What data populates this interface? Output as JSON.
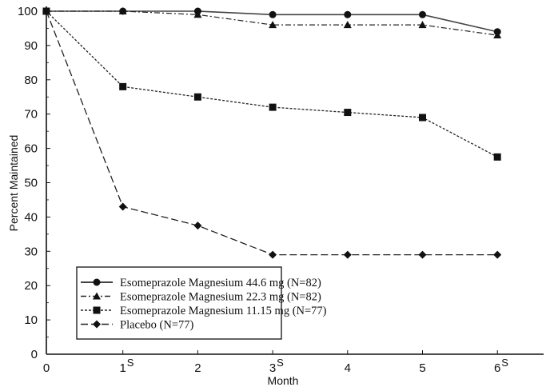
{
  "chart_data": {
    "type": "line",
    "title": "",
    "xlabel": "Month",
    "ylabel": "Percent Maintained",
    "xlim": [
      0,
      6.5
    ],
    "ylim": [
      0,
      100
    ],
    "x": [
      0,
      1,
      2,
      3,
      4,
      5,
      6
    ],
    "x_tick_labels": [
      "0",
      "1",
      "2",
      "3",
      "4",
      "5",
      "6"
    ],
    "x_tick_superscripts": [
      "",
      "S",
      "",
      "S",
      "",
      "",
      "S"
    ],
    "y_ticks": [
      0,
      10,
      20,
      30,
      40,
      50,
      60,
      70,
      80,
      90,
      100
    ],
    "y_tick_labels": [
      "0",
      "10",
      "20",
      "30",
      "40",
      "50",
      "60",
      "70",
      "80",
      "90",
      "100"
    ],
    "grid": false,
    "legend_position": "bottom-left",
    "series": [
      {
        "name": "Esomeprazole Magnesium 44.6 mg (N=82)",
        "marker": "circle",
        "line": "solid",
        "values": [
          100,
          100,
          100,
          99,
          99,
          99,
          94
        ]
      },
      {
        "name": "Esomeprazole Magnesium 22.3 mg (N=82)",
        "marker": "triangle",
        "line": "dashdot",
        "values": [
          100,
          100,
          99,
          96,
          96,
          96,
          93
        ]
      },
      {
        "name": "Esomeprazole Magnesium 11.15 mg (N=77)",
        "marker": "square",
        "line": "dotted",
        "values": [
          100,
          78,
          75,
          72,
          70.5,
          69,
          57.5
        ]
      },
      {
        "name": "Placebo (N=77)",
        "marker": "diamond",
        "line": "dashed",
        "values": [
          100,
          43,
          37.5,
          29,
          29,
          29,
          29
        ]
      }
    ]
  },
  "colors": {
    "ink": "#111111",
    "line_gray": "#333333",
    "background": "#ffffff"
  }
}
